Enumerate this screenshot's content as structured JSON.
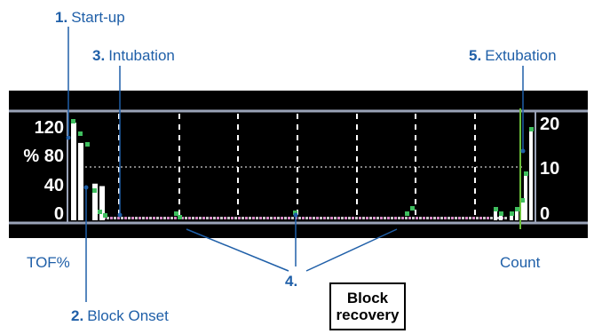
{
  "callouts": {
    "startup": {
      "num": "1.",
      "label": "Start-up"
    },
    "block_onset": {
      "num": "2.",
      "label": "Block Onset"
    },
    "intubation": {
      "num": "3.",
      "label": "Intubation"
    },
    "four": {
      "num": "4.",
      "label": ""
    },
    "extubation": {
      "num": "5.",
      "label": "Extubation"
    }
  },
  "axis": {
    "left_ticks": [
      "120",
      "% 80",
      "40",
      "0"
    ],
    "right_ticks": [
      "20",
      "10",
      "0"
    ],
    "left_title": "TOF%",
    "right_title": "Count"
  },
  "block_recovery": {
    "line1": "Block",
    "line2": "recovery"
  },
  "colors": {
    "accent": "#1f5fa8",
    "background": "#000000",
    "frame": "#9aa3b8",
    "tof_bar": "#ffffff",
    "count_marker": "#3fbf5f",
    "baseline_marker": "#d98ac8"
  },
  "chart_data": {
    "type": "bar",
    "series": [
      {
        "values": [
          120,
          95,
          0,
          45,
          42,
          0
        ]
      },
      {
        "values": [
          2,
          1,
          0,
          1,
          2,
          4,
          10,
          20
        ]
      }
    ]
  }
}
